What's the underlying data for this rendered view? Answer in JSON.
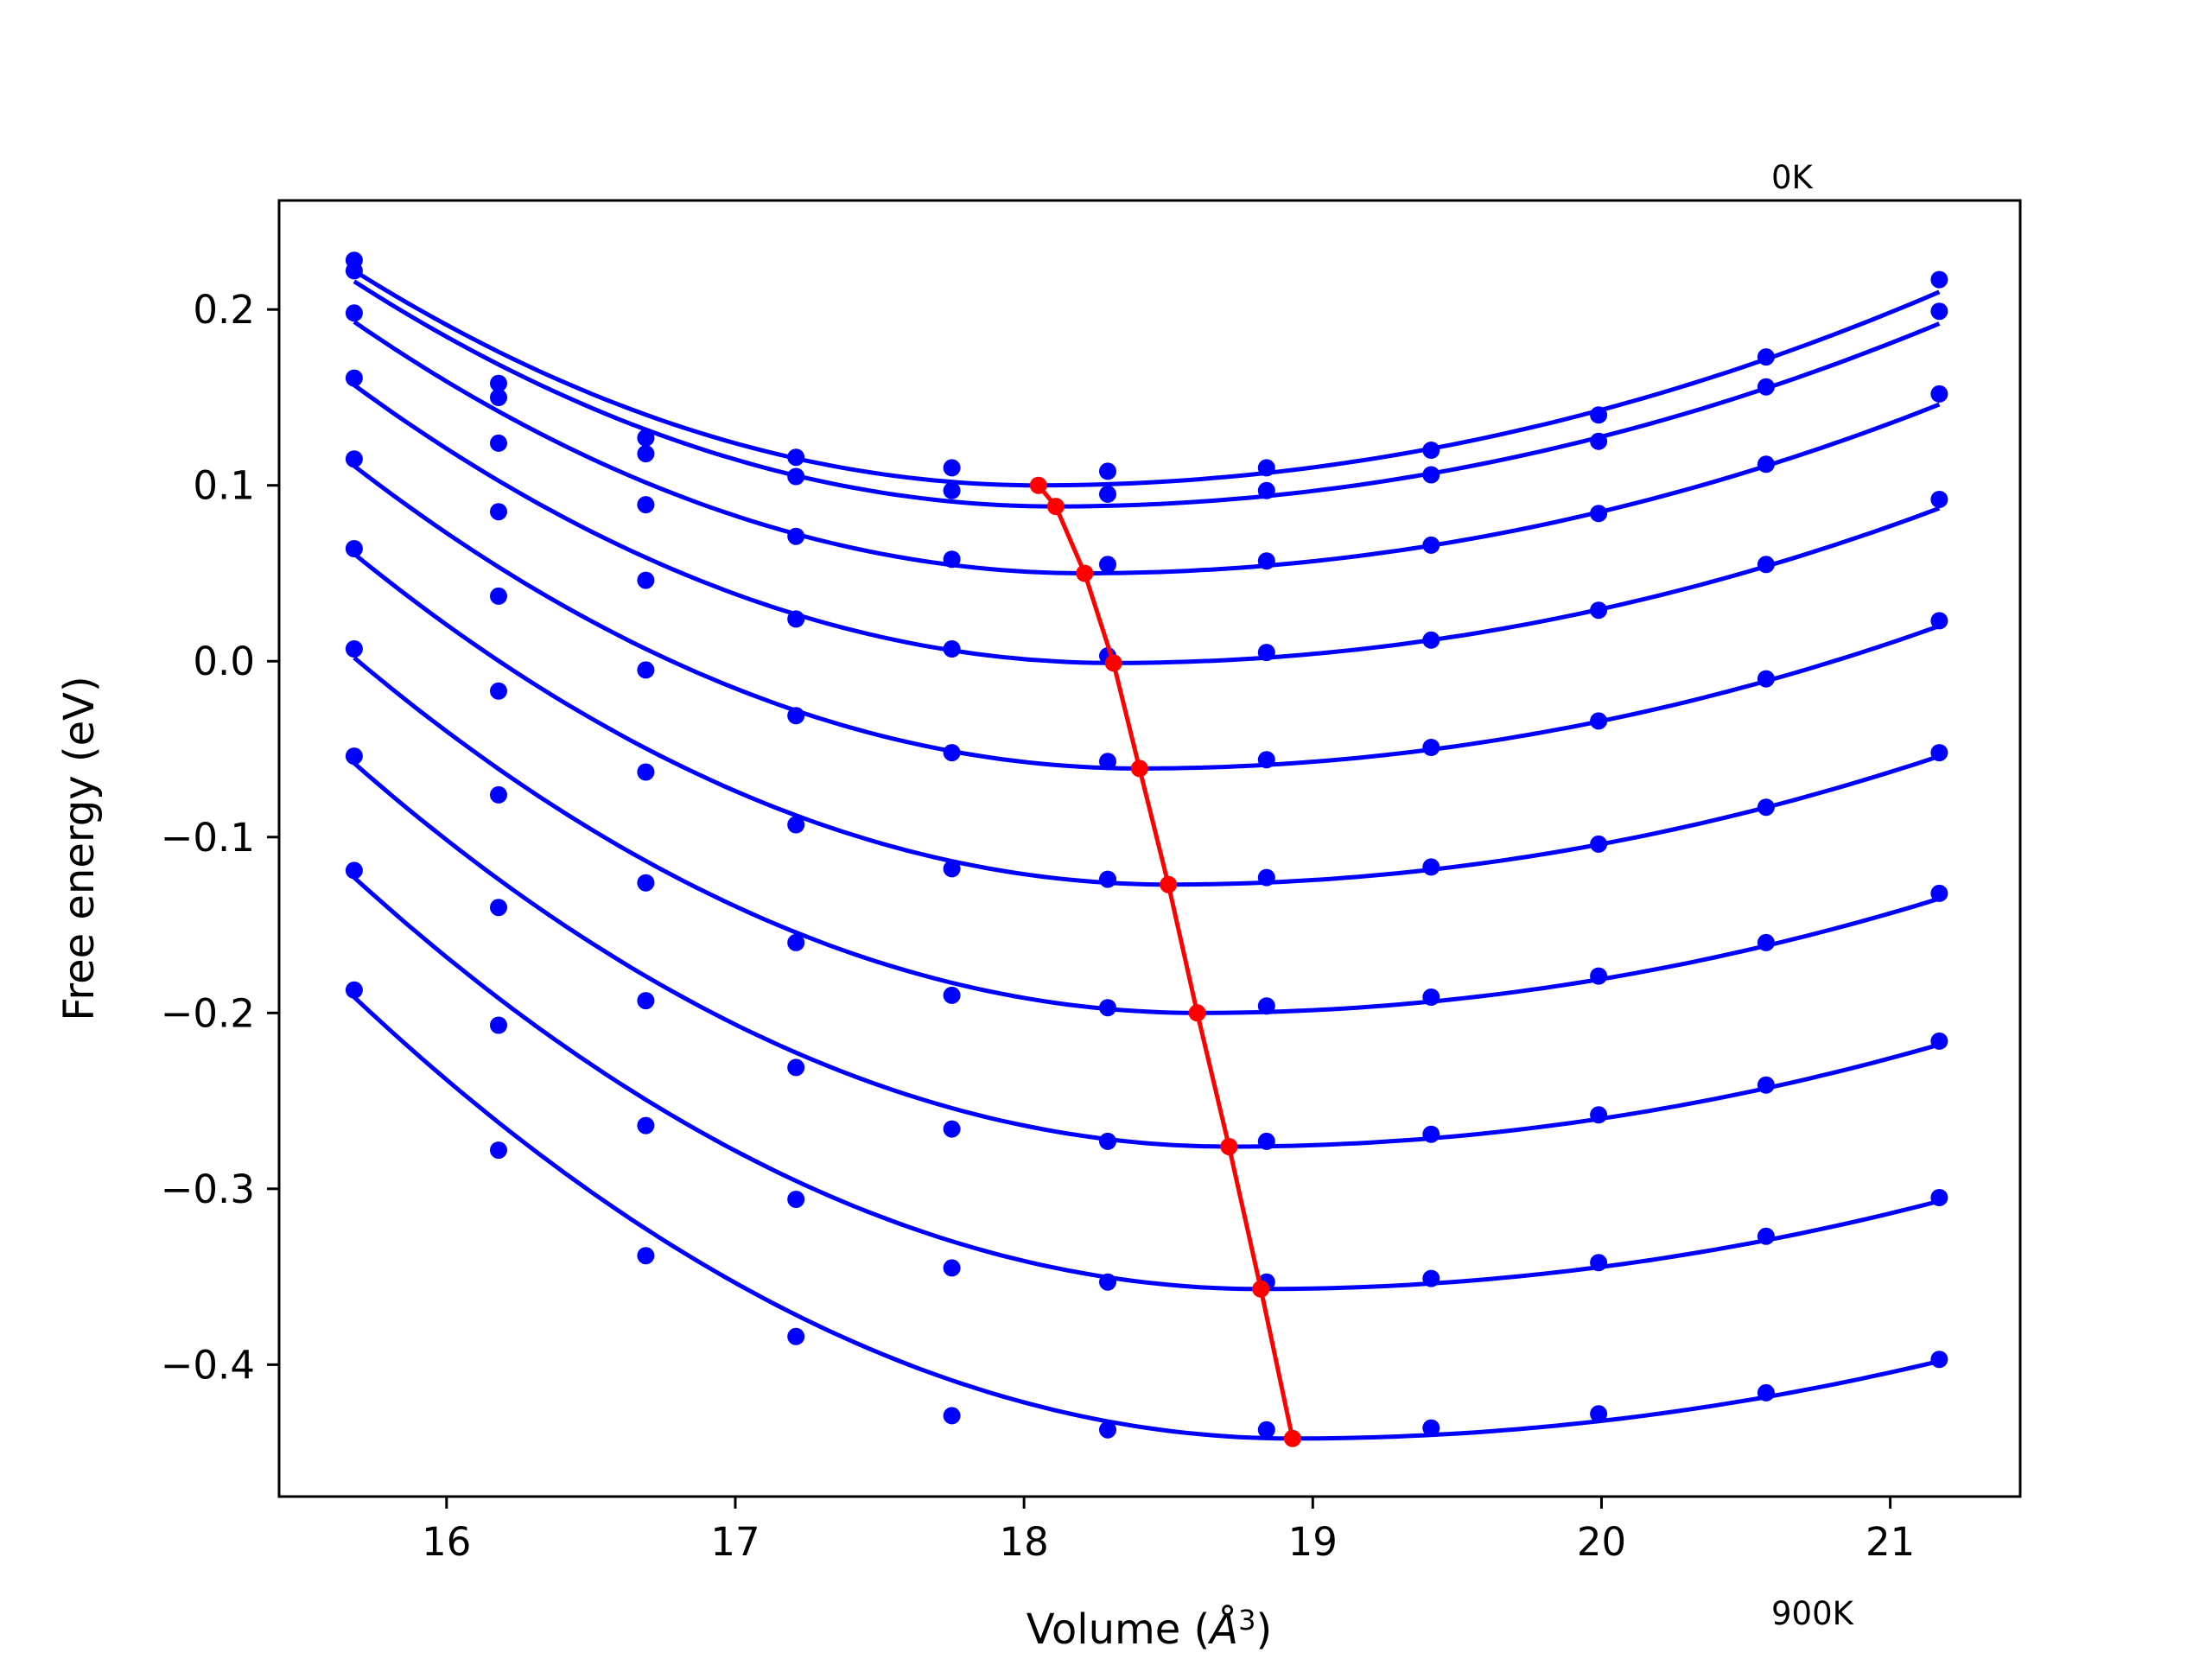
{
  "chart_data": {
    "type": "line",
    "xlabel": "Volume (",
    "xlabel_unit": "Å",
    "xlabel_exp": "3",
    "xlabel_close": ")",
    "ylabel": "Free energy (eV)",
    "xlim": [
      15.42,
      21.45
    ],
    "ylim": [
      -0.475,
      0.262
    ],
    "xticks": [
      16,
      17,
      18,
      19,
      20,
      21
    ],
    "yticks": [
      0.2,
      0.1,
      0.0,
      -0.1,
      -0.2,
      -0.3,
      -0.4
    ],
    "ytick_labels": [
      "0.2",
      "0.1",
      "0.0",
      "−0.1",
      "−0.2",
      "−0.3",
      "−0.4"
    ],
    "annotations": [
      {
        "text": "0K",
        "x": 20.56,
        "y": 0.27
      },
      {
        "text": "900K",
        "x": 20.56,
        "y": -0.505
      }
    ],
    "curve_color": "#0000ff",
    "min_line_color": "#ff0000",
    "volumes": [
      15.68,
      16.18,
      16.69,
      17.21,
      17.75,
      18.29,
      18.84,
      19.41,
      19.99,
      20.57,
      21.17
    ],
    "series": [
      {
        "points": [
          0.228,
          0.158,
          0.127,
          0.116,
          0.11,
          0.108,
          0.11,
          0.12,
          0.14,
          0.173,
          0.217
        ],
        "fit": {
          "min_x": 18.05,
          "min_y": 0.1,
          "y_left": 0.222,
          "y_right": 0.21
        }
      },
      {
        "points": [
          0.222,
          0.15,
          0.118,
          0.105,
          0.097,
          0.095,
          0.097,
          0.106,
          0.125,
          0.156,
          0.199
        ],
        "fit": {
          "min_x": 18.11,
          "min_y": 0.088,
          "y_left": 0.216,
          "y_right": 0.192
        }
      },
      {
        "points": [
          0.198,
          0.124,
          0.089,
          0.071,
          0.058,
          0.055,
          0.057,
          0.066,
          0.084,
          0.112,
          0.152
        ],
        "fit": {
          "min_x": 18.21,
          "min_y": 0.05,
          "y_left": 0.193,
          "y_right": 0.146
        }
      },
      {
        "points": [
          0.161,
          0.085,
          0.046,
          0.024,
          0.007,
          0.003,
          0.005,
          0.012,
          0.029,
          0.055,
          0.092
        ],
        "fit": {
          "min_x": 18.31,
          "min_y": -0.001,
          "y_left": 0.157,
          "y_right": 0.087
        }
      },
      {
        "points": [
          0.115,
          0.037,
          -0.005,
          -0.031,
          -0.052,
          -0.057,
          -0.056,
          -0.049,
          -0.034,
          -0.01,
          0.023
        ],
        "fit": {
          "min_x": 18.4,
          "min_y": -0.061,
          "y_left": 0.111,
          "y_right": 0.02
        }
      },
      {
        "points": [
          0.064,
          -0.017,
          -0.063,
          -0.093,
          -0.118,
          -0.124,
          -0.123,
          -0.117,
          -0.104,
          -0.083,
          -0.052
        ],
        "fit": {
          "min_x": 18.5,
          "min_y": -0.127,
          "y_left": 0.061,
          "y_right": -0.054
        }
      },
      {
        "points": [
          0.007,
          -0.076,
          -0.126,
          -0.16,
          -0.19,
          -0.197,
          -0.196,
          -0.191,
          -0.179,
          -0.16,
          -0.132
        ],
        "fit": {
          "min_x": 18.6,
          "min_y": -0.2,
          "y_left": 0.002,
          "y_right": -0.135
        }
      },
      {
        "points": [
          -0.054,
          -0.14,
          -0.193,
          -0.231,
          -0.266,
          -0.273,
          -0.273,
          -0.269,
          -0.258,
          -0.241,
          -0.216
        ],
        "fit": {
          "min_x": 18.71,
          "min_y": -0.276,
          "y_left": -0.058,
          "y_right": -0.218
        }
      },
      {
        "points": [
          -0.119,
          -0.207,
          -0.264,
          -0.306,
          -0.345,
          -0.353,
          -0.353,
          -0.351,
          -0.342,
          -0.327,
          -0.305
        ],
        "fit": {
          "min_x": 18.82,
          "min_y": -0.357,
          "y_left": -0.123,
          "y_right": -0.307
        }
      },
      {
        "points": [
          -0.187,
          -0.278,
          -0.338,
          -0.384,
          -0.429,
          -0.437,
          -0.437,
          -0.436,
          -0.428,
          -0.416,
          -0.397
        ],
        "fit": {
          "min_x": 18.93,
          "min_y": -0.442,
          "y_left": -0.191,
          "y_right": -0.398
        }
      }
    ]
  }
}
